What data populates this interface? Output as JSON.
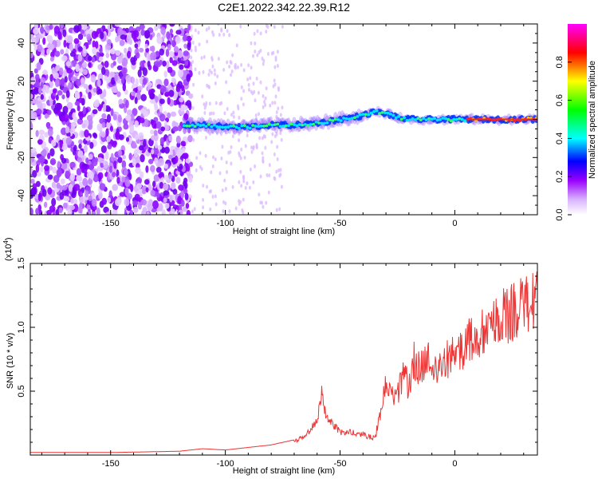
{
  "title": "C2E1.2022.342.22.39.R12",
  "chart_data": [
    {
      "type": "heatmap",
      "xlabel": "Height of straight line (km)",
      "ylabel": "Frequency (Hz)",
      "xlim": [
        -185,
        36
      ],
      "ylim": [
        -50,
        50
      ],
      "xticks": [
        -150,
        -100,
        -50,
        0
      ],
      "yticks": [
        -40,
        -20,
        0,
        20,
        40
      ],
      "colorbar": {
        "label": "Normalized spectral amplitude",
        "range": [
          0.0,
          1.0
        ],
        "ticks": [
          0.0,
          0.2,
          0.4,
          0.6,
          0.8
        ],
        "colors": [
          "#ffffff",
          "#9900ff",
          "#0000ff",
          "#00ffff",
          "#00ff00",
          "#ffff00",
          "#ff0000",
          "#ff00ff"
        ]
      },
      "signal_band": [
        {
          "x": -118,
          "y": -3
        },
        {
          "x": -110,
          "y": -3
        },
        {
          "x": -100,
          "y": -4
        },
        {
          "x": -90,
          "y": -4
        },
        {
          "x": -80,
          "y": -3
        },
        {
          "x": -70,
          "y": -3
        },
        {
          "x": -60,
          "y": -2
        },
        {
          "x": -50,
          "y": 0
        },
        {
          "x": -40,
          "y": 2
        },
        {
          "x": -35,
          "y": 4
        },
        {
          "x": -30,
          "y": 3
        },
        {
          "x": -25,
          "y": 1
        },
        {
          "x": -20,
          "y": 0
        },
        {
          "x": -10,
          "y": 0
        },
        {
          "x": 0,
          "y": 0
        },
        {
          "x": 10,
          "y": 0
        },
        {
          "x": 20,
          "y": 0
        },
        {
          "x": 36,
          "y": 0
        }
      ]
    },
    {
      "type": "line",
      "xlabel": "Height of straight line (km)",
      "ylabel": "SNR (10 * v/v)",
      "yunit": "(x10^4)",
      "xlim": [
        -185,
        36
      ],
      "ylim": [
        0,
        1.5
      ],
      "xticks": [
        -150,
        -100,
        -50,
        0
      ],
      "yticks": [
        0.5,
        1.0,
        1.5
      ],
      "color": "#ee3333",
      "series": [
        {
          "x": [
            -185,
            -150,
            -120,
            -110,
            -100,
            -90,
            -80,
            -70,
            -65,
            -60,
            -58,
            -56,
            -54,
            -50,
            -45,
            -40,
            -35,
            -32,
            -30,
            -28,
            -25,
            -22,
            -20,
            -18,
            -15,
            -12,
            -10,
            -8,
            -5,
            0,
            5,
            10,
            15,
            20,
            25,
            30,
            36
          ],
          "y": [
            0.02,
            0.02,
            0.03,
            0.05,
            0.04,
            0.06,
            0.08,
            0.12,
            0.18,
            0.3,
            0.55,
            0.35,
            0.3,
            0.2,
            0.2,
            0.18,
            0.15,
            0.4,
            0.7,
            0.55,
            0.6,
            0.75,
            0.65,
            0.9,
            0.8,
            0.95,
            0.85,
            0.8,
            0.9,
            0.95,
            1.05,
            1.15,
            1.2,
            1.3,
            1.35,
            1.4,
            1.45
          ]
        }
      ]
    }
  ]
}
